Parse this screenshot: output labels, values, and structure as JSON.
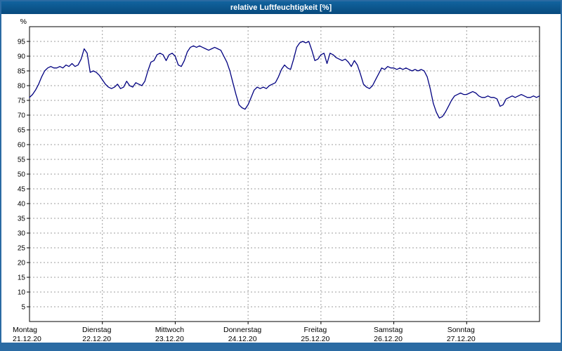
{
  "window": {
    "title": "relative Luftfeuchtigkeit [%]"
  },
  "colors": {
    "frame": "#2b6ba3",
    "titlebar": "#0b528a",
    "titlebar_text": "#ffffff",
    "line": "#000080",
    "grid": "#9c9c9c",
    "axis": "#000000",
    "label": "#000000",
    "plot_bg": "#ffffff"
  },
  "chart_data": {
    "type": "line",
    "title": "relative Luftfeuchtigkeit [%]",
    "ylabel": "%",
    "ylim": [
      0,
      100
    ],
    "y_ticks": [
      5,
      10,
      15,
      20,
      25,
      30,
      35,
      40,
      45,
      50,
      55,
      60,
      65,
      70,
      75,
      80,
      85,
      90,
      95
    ],
    "grid": true,
    "legend": "none",
    "x_total_hours": 168,
    "start_hour": 0,
    "step_hours": 1,
    "days": [
      {
        "name": "Montag",
        "date": "21.12.20",
        "hour": 0
      },
      {
        "name": "Dienstag",
        "date": "22.12.20",
        "hour": 24
      },
      {
        "name": "Mittwoch",
        "date": "23.12.20",
        "hour": 48
      },
      {
        "name": "Donnerstag",
        "date": "24.12.20",
        "hour": 72
      },
      {
        "name": "Freitag",
        "date": "25.12.20",
        "hour": 96
      },
      {
        "name": "Samstag",
        "date": "26.12.20",
        "hour": 120
      },
      {
        "name": "Sonntag",
        "date": "27.12.20",
        "hour": 144
      }
    ],
    "series": [
      {
        "name": "relative Luftfeuchtigkeit",
        "unit": "%",
        "values": [
          76,
          77,
          78.5,
          80.5,
          83,
          85,
          86,
          86.5,
          86,
          86,
          86.5,
          86,
          87,
          86.5,
          87.5,
          86.5,
          87,
          89,
          92.5,
          91,
          84.5,
          85,
          84.5,
          83.5,
          82,
          80.5,
          79.5,
          79,
          79.5,
          80.5,
          79,
          79.5,
          81.5,
          80,
          79.5,
          81,
          80.5,
          80,
          81.5,
          85,
          88,
          88.5,
          90.5,
          91,
          90.5,
          88.5,
          90.5,
          91,
          90,
          87,
          86.5,
          88.5,
          91.5,
          93,
          93.5,
          93,
          93.5,
          93,
          92.5,
          92,
          92.5,
          93,
          92.5,
          92,
          90,
          88,
          85,
          81,
          77,
          73.5,
          72.5,
          72,
          73.5,
          76,
          78.5,
          79.5,
          79,
          79.5,
          79,
          80,
          80.5,
          81,
          83,
          85.5,
          87,
          86,
          85.5,
          89,
          93,
          94.5,
          95,
          94.5,
          95,
          92,
          88.5,
          89,
          90.5,
          91,
          87.5,
          91,
          90.5,
          89.5,
          89,
          88.5,
          89,
          88,
          86.5,
          88.5,
          87,
          84,
          80.5,
          79.5,
          79,
          80,
          82,
          84,
          86,
          85.5,
          86.5,
          86,
          86,
          85.5,
          86,
          85.5,
          86,
          85.5,
          85,
          85.5,
          85,
          85.5,
          85,
          83,
          79,
          74,
          71,
          69,
          69.5,
          71,
          73,
          75,
          76.5,
          77,
          77.5,
          77,
          77,
          77.5,
          78,
          77.5,
          76.5,
          76,
          76,
          76.5,
          76,
          76,
          75.5,
          73,
          73.5,
          75.5,
          76,
          76.5,
          76,
          76.5,
          77,
          76.5,
          76,
          76,
          76.5,
          76,
          76.5
        ]
      }
    ]
  }
}
